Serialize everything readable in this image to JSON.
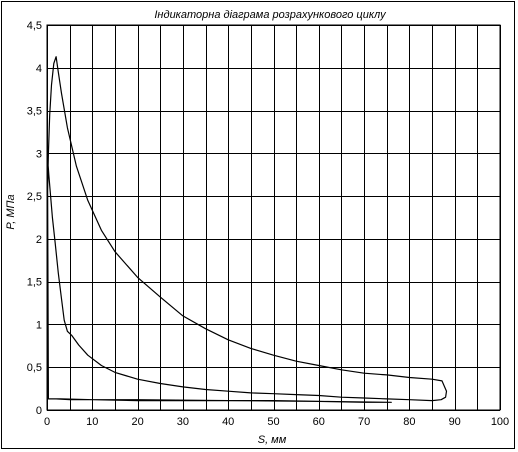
{
  "chart_data": {
    "type": "line",
    "title": "Індикаторна діаграма розрахункового циклу",
    "xlabel": "S, мм",
    "ylabel": "P, МПа",
    "xlim": [
      0,
      100
    ],
    "ylim": [
      0,
      4.5
    ],
    "x_ticks": [
      0,
      10,
      20,
      30,
      40,
      50,
      60,
      70,
      80,
      90,
      100
    ],
    "x_tick_labels": [
      "0",
      "10",
      "20",
      "30",
      "40",
      "50",
      "60",
      "70",
      "80",
      "90",
      "100"
    ],
    "y_ticks": [
      0,
      0.5,
      1,
      1.5,
      2,
      2.5,
      3,
      3.5,
      4,
      4.5
    ],
    "y_tick_labels": [
      "0",
      "0,5",
      "1",
      "1,5",
      "2",
      "2,5",
      "3",
      "3,5",
      "4",
      "4,5"
    ],
    "grid": true,
    "legend": "none",
    "series": [
      {
        "color": "#000000",
        "x": [
          0.1,
          0.3,
          0.6,
          1.0,
          1.5,
          2.0,
          2.5,
          3.2,
          4.5,
          6.5,
          9,
          12,
          15,
          20,
          25,
          30,
          35,
          40,
          45,
          50,
          55,
          60,
          65,
          70,
          75,
          80,
          85,
          87.2,
          88.2,
          88.0,
          87,
          85,
          80,
          75,
          70,
          65,
          60,
          55,
          50,
          45,
          40,
          35,
          30,
          25,
          20,
          15,
          12,
          9,
          7,
          5.5,
          4.5,
          3.8,
          3.2,
          2.5,
          1.8,
          1.2,
          0.8,
          0.4,
          0.2,
          0.1,
          0.3,
          2,
          5,
          10,
          20,
          30,
          40,
          50,
          60,
          70,
          76,
          60,
          40,
          20,
          10,
          3,
          0.3
        ],
        "y": [
          2.5,
          3.0,
          3.45,
          3.8,
          4.05,
          4.13,
          3.95,
          3.7,
          3.3,
          2.85,
          2.45,
          2.1,
          1.85,
          1.55,
          1.32,
          1.1,
          0.95,
          0.82,
          0.72,
          0.64,
          0.57,
          0.52,
          0.47,
          0.43,
          0.41,
          0.38,
          0.36,
          0.34,
          0.22,
          0.15,
          0.12,
          0.11,
          0.12,
          0.13,
          0.14,
          0.15,
          0.17,
          0.18,
          0.19,
          0.2,
          0.22,
          0.24,
          0.27,
          0.31,
          0.36,
          0.44,
          0.52,
          0.64,
          0.76,
          0.87,
          0.92,
          1.05,
          1.3,
          1.6,
          1.95,
          2.25,
          2.5,
          2.75,
          2.9,
          3.0,
          0.13,
          0.13,
          0.12,
          0.12,
          0.11,
          0.11,
          0.11,
          0.11,
          0.1,
          0.09,
          0.09,
          0.1,
          0.11,
          0.12,
          0.12,
          0.13,
          0.13
        ]
      }
    ]
  }
}
